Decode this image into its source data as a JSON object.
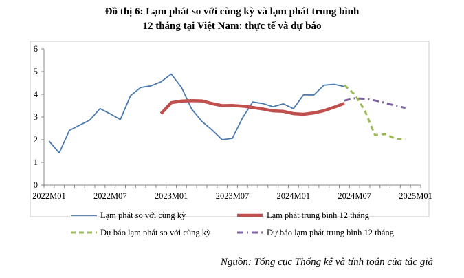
{
  "title": "Đồ thị 6: Lạm phát so với cùng kỳ và lạm phát trung bình",
  "subtitle": "12 tháng tại Việt Nam: thực tế và dự báo",
  "source": "Nguồn: Tổng cục Thống kê và tính toán của tác giả",
  "chart_data": {
    "type": "line",
    "title": "Đồ thị 6: Lạm phát so với cùng kỳ và lạm phát trung bình 12 tháng tại Việt Nam: thực tế và dự báo",
    "xlabel": "",
    "ylabel": "",
    "ylim": [
      0,
      6
    ],
    "yticks": [
      0,
      1,
      2,
      3,
      4,
      5,
      6
    ],
    "x_ticks": [
      "2022M01",
      "2022M07",
      "2023M01",
      "2023M07",
      "2024M01",
      "2024M07",
      "2025M01"
    ],
    "grid": false,
    "legend_position": "bottom",
    "series": [
      {
        "name": "Lạm phát so với cùng kỳ",
        "color": "#4a7ab0",
        "style": "solid",
        "x": [
          "2022M01",
          "2022M02",
          "2022M03",
          "2022M04",
          "2022M05",
          "2022M06",
          "2022M07",
          "2022M08",
          "2022M09",
          "2022M10",
          "2022M11",
          "2022M12",
          "2023M01",
          "2023M02",
          "2023M03",
          "2023M04",
          "2023M05",
          "2023M06",
          "2023M07",
          "2023M08",
          "2023M09",
          "2023M10",
          "2023M11",
          "2023M12",
          "2024M01",
          "2024M02",
          "2024M03",
          "2024M04",
          "2024M05",
          "2024M06"
        ],
        "values": [
          1.94,
          1.42,
          2.41,
          2.64,
          2.86,
          3.37,
          3.14,
          2.89,
          3.94,
          4.3,
          4.37,
          4.55,
          4.89,
          4.31,
          3.35,
          2.81,
          2.43,
          2.0,
          2.06,
          2.96,
          3.66,
          3.59,
          3.45,
          3.58,
          3.37,
          3.98,
          3.97,
          4.4,
          4.44,
          4.34
        ]
      },
      {
        "name": "Lạm phát trung bình 12 tháng",
        "color": "#c0504d",
        "style": "solid-thick",
        "x": [
          "2022M12",
          "2023M01",
          "2023M02",
          "2023M03",
          "2023M04",
          "2023M05",
          "2023M06",
          "2023M07",
          "2023M08",
          "2023M09",
          "2023M10",
          "2023M11",
          "2023M12",
          "2024M01",
          "2024M02",
          "2024M03",
          "2024M04",
          "2024M05",
          "2024M06"
        ],
        "values": [
          3.15,
          3.63,
          3.7,
          3.72,
          3.71,
          3.59,
          3.5,
          3.51,
          3.48,
          3.42,
          3.35,
          3.27,
          3.25,
          3.15,
          3.12,
          3.18,
          3.28,
          3.43,
          3.6
        ]
      },
      {
        "name": "Dự báo lạm phát so với cùng kỳ",
        "color": "#9bbb59",
        "style": "dashed",
        "x": [
          "2024M06",
          "2024M07",
          "2024M08",
          "2024M09",
          "2024M10",
          "2024M11",
          "2024M12"
        ],
        "values": [
          4.4,
          4.0,
          3.3,
          2.2,
          2.25,
          2.05,
          2.03
        ]
      },
      {
        "name": "Dự báo lạm phát trung bình 12 tháng",
        "color": "#8064a2",
        "style": "dash-dot",
        "x": [
          "2024M06",
          "2024M07",
          "2024M08",
          "2024M09",
          "2024M10",
          "2024M11",
          "2024M12"
        ],
        "values": [
          3.72,
          3.82,
          3.8,
          3.73,
          3.62,
          3.5,
          3.4
        ]
      }
    ]
  }
}
